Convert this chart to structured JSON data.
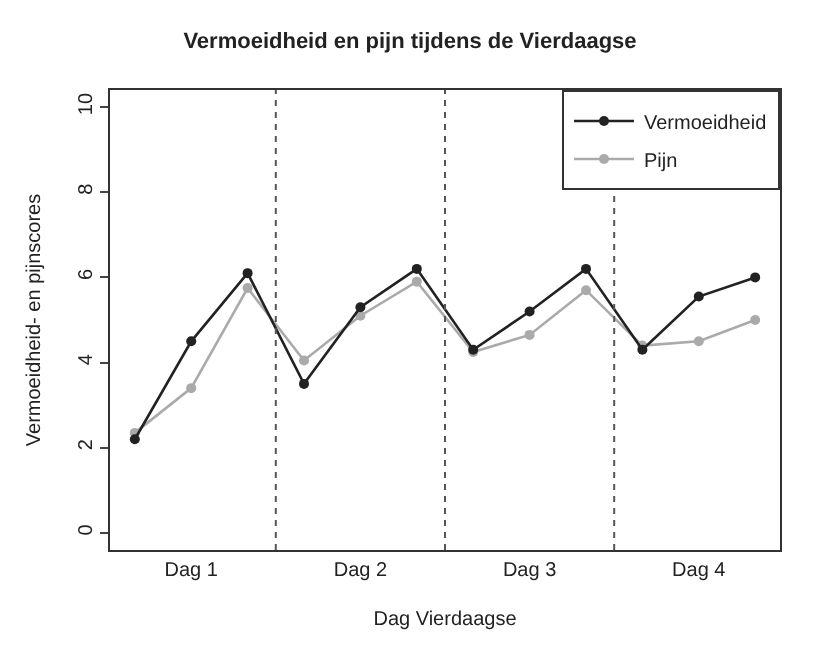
{
  "chart_data": {
    "type": "line",
    "title": "Vermoeidheid en pijn tijdens de Vierdaagse",
    "xlabel": "Dag Vierdaagse",
    "ylabel": "Vermoeidheid- en pijnscores",
    "categories": [
      null,
      "Dag 1",
      null,
      null,
      "Dag 2",
      null,
      null,
      "Dag 3",
      null,
      null,
      "Dag 4",
      null
    ],
    "series": [
      {
        "name": "Vermoeidheid",
        "color": "#222222",
        "values": [
          2.2,
          4.5,
          6.1,
          3.5,
          5.3,
          6.2,
          4.3,
          5.2,
          6.2,
          4.3,
          5.55,
          6.0
        ]
      },
      {
        "name": "Pijn",
        "color": "#aaaaaa",
        "values": [
          2.35,
          3.4,
          5.75,
          4.05,
          5.1,
          5.9,
          4.25,
          4.65,
          5.7,
          4.4,
          4.5,
          5.0
        ]
      }
    ],
    "ylim": [
      -0.4,
      10.4
    ],
    "yticks": [
      0,
      2,
      4,
      6,
      8,
      10
    ],
    "marker": "circle",
    "line_style": "solid",
    "legend": "top right"
  }
}
